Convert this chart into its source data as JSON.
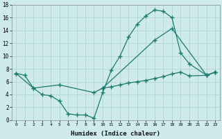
{
  "xlabel": "Humidex (Indice chaleur)",
  "background_color": "#ceeaea",
  "grid_color": "#afd4d4",
  "line_color": "#1a7a6e",
  "xlim": [
    -0.5,
    23.5
  ],
  "ylim": [
    0,
    18
  ],
  "xticks": [
    0,
    1,
    2,
    3,
    4,
    5,
    6,
    7,
    8,
    9,
    10,
    11,
    12,
    13,
    14,
    15,
    16,
    17,
    18,
    19,
    20,
    21,
    22,
    23
  ],
  "yticks": [
    0,
    2,
    4,
    6,
    8,
    10,
    12,
    14,
    16,
    18
  ],
  "line1_x": [
    0,
    1,
    2,
    3,
    4,
    5,
    6,
    7,
    8,
    9,
    10,
    11,
    12,
    13,
    14,
    15,
    16,
    17,
    18,
    19,
    20,
    22,
    23
  ],
  "line1_y": [
    7.3,
    7.0,
    5.0,
    4.0,
    3.8,
    3.0,
    1.0,
    0.8,
    0.8,
    0.3,
    4.3,
    7.8,
    10.0,
    13.0,
    15.0,
    16.3,
    17.2,
    17.0,
    16.0,
    10.5,
    8.8,
    7.0,
    7.5
  ],
  "line2_x": [
    0,
    2,
    5,
    9,
    10,
    16,
    18,
    22,
    23
  ],
  "line2_y": [
    7.3,
    5.0,
    5.5,
    4.3,
    5.0,
    12.5,
    14.3,
    7.0,
    7.5
  ],
  "line3_x": [
    10,
    11,
    12,
    13,
    14,
    15,
    16,
    17,
    18,
    19,
    20,
    22,
    23
  ],
  "line3_y": [
    5.0,
    5.2,
    5.5,
    5.8,
    6.0,
    6.2,
    6.5,
    6.8,
    7.2,
    7.5,
    6.9,
    7.0,
    7.5
  ]
}
